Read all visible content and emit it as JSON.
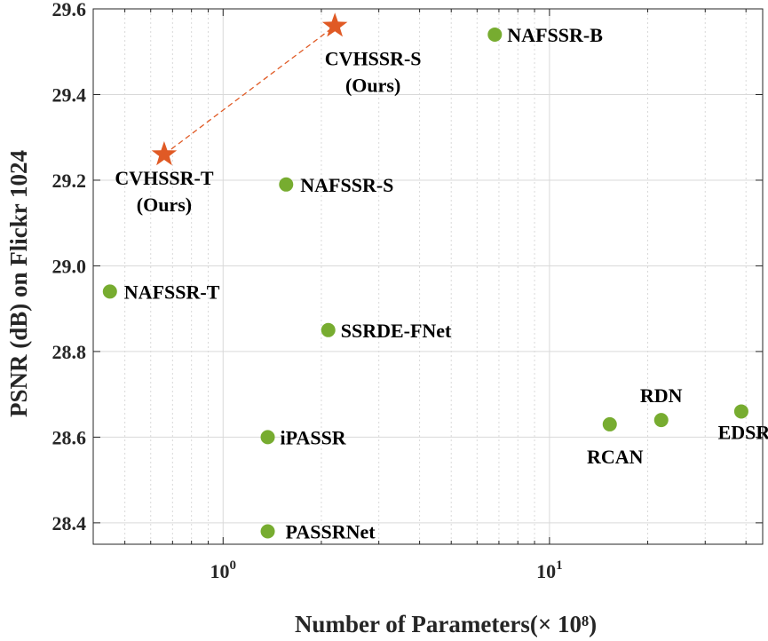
{
  "chart_data": {
    "type": "scatter",
    "title": "",
    "xlabel": "Number of Parameters(× 10⁸)",
    "ylabel": "PSNR (dB) on Flickr 1024",
    "x_scale": "log",
    "xlim": [
      0.4,
      45
    ],
    "ylim": [
      28.35,
      29.6
    ],
    "grid": true,
    "yticks": [
      "28.4",
      "28.6",
      "28.8",
      "29.0",
      "29.2",
      "29.4",
      "29.6"
    ],
    "xticks": [
      {
        "value": 1,
        "base": "10",
        "exp": "0"
      },
      {
        "value": 10,
        "base": "10",
        "exp": "1"
      }
    ],
    "colors": {
      "ours": "#e05a25",
      "others": "#77ac30",
      "grid": "#d9d9d9"
    },
    "series": [
      {
        "points": [
          {
            "x": 0.45,
            "y": 28.94,
            "label": "NAFSSR-T"
          },
          {
            "x": 1.56,
            "y": 29.19,
            "label": "NAFSSR-S"
          },
          {
            "x": 6.8,
            "y": 29.54,
            "label": "NAFSSR-B"
          },
          {
            "x": 2.1,
            "y": 28.85,
            "label": "SSRDE-FNet"
          },
          {
            "x": 1.37,
            "y": 28.6,
            "label": "iPASSR"
          },
          {
            "x": 1.37,
            "y": 28.38,
            "label": "PASSRNet"
          },
          {
            "x": 15.3,
            "y": 28.63,
            "label": "RCAN"
          },
          {
            "x": 22.0,
            "y": 28.64,
            "label": "RDN"
          },
          {
            "x": 38.7,
            "y": 28.66,
            "label": "EDSR"
          }
        ]
      },
      {
        "points": [
          {
            "x": 0.66,
            "y": 29.26,
            "label": [
              "CVHSSR-T",
              "(Ours)"
            ]
          },
          {
            "x": 2.2,
            "y": 29.56,
            "label": [
              "CVHSSR-S",
              "(Ours)"
            ]
          }
        ]
      }
    ]
  }
}
